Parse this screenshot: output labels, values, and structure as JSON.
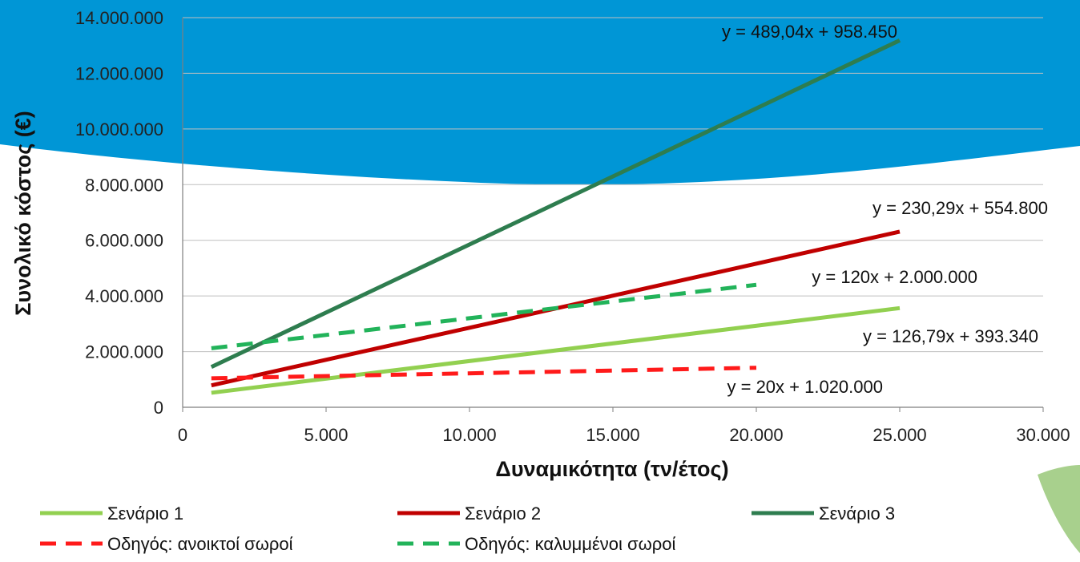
{
  "chart_data": {
    "type": "line",
    "xlabel": "Δυναμικότητα (τν/έτος)",
    "ylabel": "Συνολικό κόστος (€)",
    "xlim": [
      0,
      30000
    ],
    "ylim": [
      0,
      14000000
    ],
    "x_ticks": [
      "0",
      "5.000",
      "10.000",
      "15.000",
      "20.000",
      "25.000",
      "30.000"
    ],
    "y_ticks": [
      "0",
      "2.000.000",
      "4.000.000",
      "6.000.000",
      "8.000.000",
      "10.000.000",
      "12.000.000",
      "14.000.000"
    ],
    "grid": "horizontal",
    "legend_position": "bottom",
    "series": [
      {
        "name": "Σενάριο 1",
        "color": "#92D050",
        "dash": false,
        "x": [
          1000,
          25000
        ],
        "y": [
          520130,
          3563090
        ],
        "equation": "y = 126,79x + 393.340"
      },
      {
        "name": "Σενάριο 2",
        "color": "#C00000",
        "dash": false,
        "x": [
          1000,
          25000
        ],
        "y": [
          785090,
          6312050
        ],
        "equation": "y = 230,29x + 554.800"
      },
      {
        "name": "Σενάριο 3",
        "color": "#2E7D4F",
        "dash": false,
        "x": [
          1000,
          25000
        ],
        "y": [
          1447490,
          13184450
        ],
        "equation": "y = 489,04x + 958.450"
      },
      {
        "name": "Οδηγός: ανοικτοί σωροί",
        "color": "#FF1A1A",
        "dash": true,
        "x": [
          1000,
          20000
        ],
        "y": [
          1040000,
          1420000
        ],
        "equation": "y = 20x + 1.020.000"
      },
      {
        "name": "Οδηγός: καλυμμένοι σωροί",
        "color": "#22B35A",
        "dash": true,
        "x": [
          1000,
          20000
        ],
        "y": [
          2120000,
          4400000
        ],
        "equation": "y = 120x + 2.000.000"
      }
    ]
  },
  "colors": {
    "background_blue": "#0096D6",
    "background_green": "#A8D08D",
    "grid": "#BFBFBF"
  }
}
